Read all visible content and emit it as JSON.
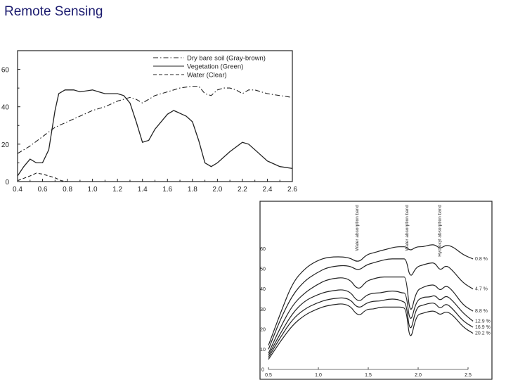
{
  "page": {
    "title": "Remote Sensing"
  },
  "chart_data": [
    {
      "type": "line",
      "xlim": [
        0.4,
        2.6
      ],
      "ylim": [
        0,
        70
      ],
      "x_ticks": [
        "0.4",
        "0.6",
        "0.8",
        "1.0",
        "1.2",
        "1.4",
        "1.6",
        "1.8",
        "2.0",
        "2.2",
        "2.4",
        "2.6"
      ],
      "y_ticks": [
        "0",
        "20",
        "40",
        "60"
      ],
      "legend_position": "top-right",
      "series": [
        {
          "name": "Dry bare soil (Gray-brown)",
          "style": "dash-dot",
          "points": [
            [
              0.4,
              15
            ],
            [
              0.5,
              19
            ],
            [
              0.6,
              24
            ],
            [
              0.7,
              29
            ],
            [
              0.8,
              32
            ],
            [
              0.9,
              35
            ],
            [
              1.0,
              38
            ],
            [
              1.1,
              40
            ],
            [
              1.2,
              43
            ],
            [
              1.3,
              45
            ],
            [
              1.35,
              44
            ],
            [
              1.4,
              42
            ],
            [
              1.45,
              44
            ],
            [
              1.5,
              46
            ],
            [
              1.6,
              48
            ],
            [
              1.7,
              50
            ],
            [
              1.8,
              51
            ],
            [
              1.85,
              51
            ],
            [
              1.9,
              47
            ],
            [
              1.95,
              46
            ],
            [
              2.0,
              49
            ],
            [
              2.05,
              50
            ],
            [
              2.1,
              50
            ],
            [
              2.15,
              49
            ],
            [
              2.2,
              47
            ],
            [
              2.25,
              49
            ],
            [
              2.3,
              49
            ],
            [
              2.4,
              47
            ],
            [
              2.5,
              46
            ],
            [
              2.6,
              45
            ]
          ]
        },
        {
          "name": "Vegetation (Green)",
          "style": "solid",
          "points": [
            [
              0.4,
              3
            ],
            [
              0.45,
              8
            ],
            [
              0.5,
              12
            ],
            [
              0.55,
              10
            ],
            [
              0.6,
              10
            ],
            [
              0.65,
              17
            ],
            [
              0.7,
              38
            ],
            [
              0.73,
              47
            ],
            [
              0.78,
              49
            ],
            [
              0.85,
              49
            ],
            [
              0.9,
              48
            ],
            [
              1.0,
              49
            ],
            [
              1.05,
              48
            ],
            [
              1.1,
              47
            ],
            [
              1.2,
              47
            ],
            [
              1.25,
              46
            ],
            [
              1.3,
              42
            ],
            [
              1.35,
              32
            ],
            [
              1.4,
              21
            ],
            [
              1.45,
              22
            ],
            [
              1.5,
              28
            ],
            [
              1.6,
              36
            ],
            [
              1.65,
              38
            ],
            [
              1.75,
              35
            ],
            [
              1.8,
              32
            ],
            [
              1.85,
              22
            ],
            [
              1.9,
              10
            ],
            [
              1.95,
              8
            ],
            [
              2.0,
              10
            ],
            [
              2.1,
              16
            ],
            [
              2.2,
              21
            ],
            [
              2.25,
              20
            ],
            [
              2.3,
              17
            ],
            [
              2.4,
              11
            ],
            [
              2.5,
              8
            ],
            [
              2.6,
              7
            ]
          ]
        },
        {
          "name": "Water (Clear)",
          "style": "dashed",
          "points": [
            [
              0.4,
              0.5
            ],
            [
              0.5,
              3
            ],
            [
              0.55,
              4.5
            ],
            [
              0.6,
              4
            ],
            [
              0.65,
              3
            ],
            [
              0.7,
              2
            ],
            [
              0.75,
              0.5
            ],
            [
              0.8,
              0
            ],
            [
              0.85,
              0
            ]
          ]
        }
      ]
    },
    {
      "type": "line",
      "xlim": [
        0.5,
        2.5
      ],
      "ylim": [
        0,
        70
      ],
      "x_ticks": [
        "0.5",
        "1.0",
        "1.5",
        "2.0",
        "2.5"
      ],
      "y_ticks": [
        "0",
        "10",
        "20",
        "30",
        "40",
        "50",
        "60"
      ],
      "annotations": [
        {
          "text": "Water absorption band",
          "x": 1.4
        },
        {
          "text": "Water absorption band",
          "x": 1.9
        },
        {
          "text": "Hydroxyl absorption band",
          "x": 2.2
        }
      ],
      "series": [
        {
          "name": "0.8 %",
          "values": [
            12,
            28,
            43,
            50,
            54,
            56,
            56,
            53,
            57,
            58,
            59,
            60,
            61,
            61,
            61,
            59,
            61,
            61,
            62,
            62,
            60,
            62,
            61,
            57,
            55
          ]
        },
        {
          "name": "4.7 %",
          "values": [
            10,
            25,
            37,
            44,
            48,
            51,
            52,
            49,
            52,
            53,
            54,
            55,
            55,
            55,
            55,
            45,
            51,
            52,
            53,
            53,
            49,
            52,
            49,
            43,
            40
          ]
        },
        {
          "name": "8.8 %",
          "values": [
            8,
            21,
            32,
            38,
            42,
            45,
            46,
            39,
            44,
            45,
            46,
            46,
            46,
            46,
            46,
            26,
            39,
            41,
            42,
            42,
            39,
            42,
            39,
            32,
            29
          ]
        },
        {
          "name": "12.9 %",
          "values": [
            7,
            18,
            28,
            34,
            37,
            39,
            40,
            33,
            37,
            38,
            38,
            39,
            39,
            38,
            38,
            22,
            34,
            36,
            36,
            37,
            34,
            37,
            34,
            28,
            24
          ]
        },
        {
          "name": "16.9 %",
          "values": [
            6,
            16,
            25,
            30,
            33,
            35,
            36,
            30,
            33,
            34,
            34,
            35,
            35,
            34,
            33,
            17,
            31,
            32,
            33,
            33,
            30,
            33,
            30,
            24,
            21
          ]
        },
        {
          "name": "20.2 %",
          "values": [
            5,
            14,
            22,
            27,
            30,
            32,
            33,
            26,
            30,
            30,
            31,
            31,
            31,
            31,
            30,
            13,
            27,
            28,
            29,
            29,
            27,
            29,
            27,
            21,
            18
          ]
        }
      ]
    }
  ]
}
